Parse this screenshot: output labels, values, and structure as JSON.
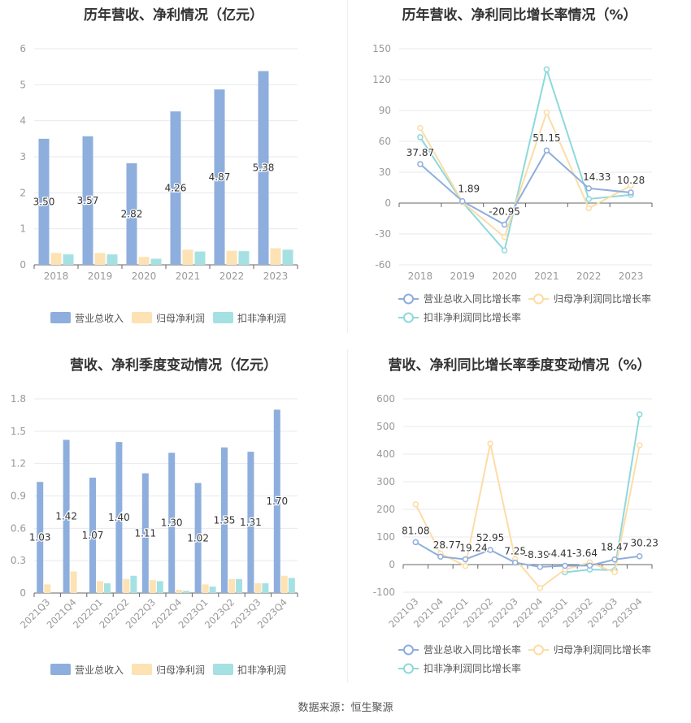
{
  "colors": {
    "revenue": "#8eaedd",
    "net_profit": "#fde2b4",
    "deducted_profit": "#a5e1e3",
    "revenue_line": "#8eaedd",
    "net_line": "#fddca6",
    "deducted_line": "#8dd9dc",
    "axis_text": "#999999",
    "label_text": "#333333",
    "grid": "#e6e9f0"
  },
  "source": "数据来源：恒生聚源",
  "chart_data": [
    {
      "id": "annual-bar",
      "type": "bar",
      "title": "历年营收、净利情况（亿元）",
      "categories": [
        "2018",
        "2019",
        "2020",
        "2021",
        "2022",
        "2023"
      ],
      "series": [
        {
          "name": "营业总收入",
          "values": [
            3.5,
            3.57,
            2.82,
            4.26,
            4.87,
            5.38
          ],
          "labels": [
            "3.50",
            "3.57",
            "2.82",
            "4.26",
            "4.87",
            "5.38"
          ]
        },
        {
          "name": "归母净利润",
          "values": [
            0.33,
            0.33,
            0.22,
            0.42,
            0.39,
            0.46
          ]
        },
        {
          "name": "扣非净利润",
          "values": [
            0.29,
            0.29,
            0.17,
            0.37,
            0.38,
            0.42
          ]
        }
      ],
      "ylim": [
        0,
        6
      ],
      "yticks": [
        "0",
        "1",
        "2",
        "3",
        "4",
        "5",
        "6"
      ],
      "legend": "bottom",
      "grid": true
    },
    {
      "id": "annual-line",
      "type": "line",
      "title": "历年营收、净利同比增长率情况（%）",
      "categories": [
        "2018",
        "2019",
        "2020",
        "2021",
        "2022",
        "2023"
      ],
      "series": [
        {
          "name": "营业总收入同比增长率",
          "values": [
            37.87,
            1.89,
            -20.95,
            51.15,
            14.33,
            10.28
          ],
          "labels": [
            "37.87",
            "1.89",
            "-20.95",
            "51.15",
            "14.33",
            "10.28"
          ]
        },
        {
          "name": "归母净利润同比增长率",
          "values": [
            73,
            1,
            -33,
            88,
            -5,
            17
          ]
        },
        {
          "name": "扣非净利润同比增长率",
          "values": [
            64,
            1,
            -46,
            130,
            4,
            8
          ]
        }
      ],
      "ylim": [
        -60,
        150
      ],
      "yticks": [
        "-60",
        "-30",
        "0",
        "30",
        "60",
        "90",
        "120",
        "150"
      ],
      "legend": "bottom",
      "grid": true
    },
    {
      "id": "quarter-bar",
      "type": "bar",
      "title": "营收、净利季度变动情况（亿元）",
      "categories": [
        "2021Q3",
        "2021Q4",
        "2022Q1",
        "2022Q2",
        "2022Q3",
        "2022Q4",
        "2023Q1",
        "2023Q2",
        "2023Q3",
        "2023Q4"
      ],
      "series": [
        {
          "name": "营业总收入",
          "values": [
            1.03,
            1.42,
            1.07,
            1.4,
            1.11,
            1.3,
            1.02,
            1.35,
            1.31,
            1.7
          ],
          "labels": [
            "1.03",
            "1.42",
            "1.07",
            "1.40",
            "1.11",
            "1.30",
            "1.02",
            "1.35",
            "1.31",
            "1.70"
          ]
        },
        {
          "name": "归母净利润",
          "values": [
            0.08,
            0.2,
            0.11,
            0.13,
            0.12,
            0.03,
            0.08,
            0.13,
            0.09,
            0.16
          ]
        },
        {
          "name": "扣非净利润",
          "values": [
            0.0,
            0.0,
            0.09,
            0.16,
            0.11,
            0.02,
            0.06,
            0.13,
            0.09,
            0.14
          ]
        }
      ],
      "ylim": [
        0,
        1.8
      ],
      "yticks": [
        "0",
        "0.3",
        "0.6",
        "0.9",
        "1.2",
        "1.5",
        "1.8"
      ],
      "legend": "bottom",
      "grid": true
    },
    {
      "id": "quarter-line",
      "type": "line",
      "title": "营收、净利同比增长率季度变动情况（%）",
      "categories": [
        "2021Q3",
        "2021Q4",
        "2022Q1",
        "2022Q2",
        "2022Q3",
        "2022Q4",
        "2023Q1",
        "2023Q2",
        "2023Q3",
        "2023Q4"
      ],
      "series": [
        {
          "name": "营业总收入同比增长率",
          "values": [
            81.08,
            28.77,
            19.24,
            52.95,
            7.25,
            -8.39,
            -4.41,
            -3.64,
            18.47,
            30.23
          ],
          "labels": [
            "81.08",
            "28.77",
            "19.24",
            "52.95",
            "7.25",
            "-8.39",
            "-4.41",
            "-3.64",
            "18.47",
            "30.23"
          ]
        },
        {
          "name": "归母净利润同比增长率",
          "values": [
            218,
            40,
            -5,
            438,
            20,
            -85,
            -18,
            8,
            -28,
            432
          ]
        },
        {
          "name": "扣非净利润同比增长率",
          "values": [
            null,
            null,
            null,
            null,
            null,
            null,
            -28,
            -18,
            -20,
            544
          ]
        }
      ],
      "ylim": [
        -100,
        600
      ],
      "yticks": [
        "-100",
        "0",
        "100",
        "200",
        "300",
        "400",
        "500",
        "600"
      ],
      "legend": "bottom",
      "grid": true
    }
  ]
}
